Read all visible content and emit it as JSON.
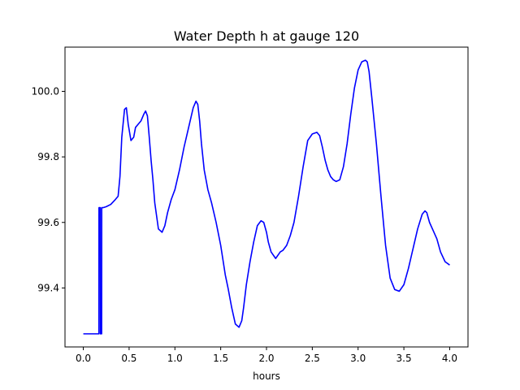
{
  "chart_data": {
    "type": "line",
    "title": "Water Depth h at gauge 120",
    "xlabel": "hours",
    "ylabel": "",
    "xlim": [
      -0.2,
      4.2
    ],
    "ylim": [
      99.22,
      100.135
    ],
    "xticks": [
      0.0,
      0.5,
      1.0,
      1.5,
      2.0,
      2.5,
      3.0,
      3.5,
      4.0
    ],
    "xtick_labels": [
      "0.0",
      "0.5",
      "1.0",
      "1.5",
      "2.0",
      "2.5",
      "3.0",
      "3.5",
      "4.0"
    ],
    "yticks": [
      99.4,
      99.6,
      99.8,
      100.0
    ],
    "ytick_labels": [
      "99.4",
      "99.6",
      "99.8",
      "100.0"
    ],
    "grid": false,
    "series": [
      {
        "color": "#0000ff",
        "x": [
          0.0,
          0.17,
          0.171,
          0.185,
          0.186,
          0.2,
          0.201,
          0.215,
          0.216,
          0.25,
          0.3,
          0.35,
          0.38,
          0.4,
          0.42,
          0.45,
          0.47,
          0.49,
          0.52,
          0.55,
          0.57,
          0.6,
          0.63,
          0.66,
          0.68,
          0.7,
          0.72,
          0.74,
          0.76,
          0.78,
          0.82,
          0.86,
          0.89,
          0.92,
          0.96,
          1.0,
          1.05,
          1.1,
          1.15,
          1.2,
          1.23,
          1.25,
          1.27,
          1.29,
          1.32,
          1.36,
          1.4,
          1.45,
          1.5,
          1.55,
          1.58,
          1.62,
          1.66,
          1.7,
          1.73,
          1.75,
          1.78,
          1.82,
          1.86,
          1.9,
          1.94,
          1.97,
          2.0,
          2.02,
          2.05,
          2.1,
          2.15,
          2.18,
          2.22,
          2.26,
          2.3,
          2.35,
          2.4,
          2.45,
          2.5,
          2.55,
          2.58,
          2.61,
          2.64,
          2.67,
          2.7,
          2.73,
          2.76,
          2.8,
          2.84,
          2.88,
          2.92,
          2.96,
          3.0,
          3.04,
          3.08,
          3.1,
          3.12,
          3.15,
          3.2,
          3.25,
          3.3,
          3.35,
          3.4,
          3.45,
          3.5,
          3.55,
          3.6,
          3.65,
          3.7,
          3.73,
          3.75,
          3.78,
          3.82,
          3.86,
          3.9,
          3.95,
          4.0
        ],
        "y": [
          99.26,
          99.26,
          99.645,
          99.645,
          99.26,
          99.26,
          99.645,
          99.645,
          99.645,
          99.648,
          99.655,
          99.67,
          99.68,
          99.74,
          99.86,
          99.945,
          99.95,
          99.9,
          99.85,
          99.86,
          99.89,
          99.9,
          99.91,
          99.93,
          99.94,
          99.925,
          99.86,
          99.79,
          99.73,
          99.66,
          99.58,
          99.57,
          99.59,
          99.63,
          99.67,
          99.7,
          99.76,
          99.83,
          99.89,
          99.95,
          99.97,
          99.96,
          99.91,
          99.84,
          99.76,
          99.7,
          99.66,
          99.6,
          99.53,
          99.44,
          99.4,
          99.34,
          99.29,
          99.28,
          99.3,
          99.34,
          99.41,
          99.48,
          99.54,
          99.59,
          99.605,
          99.6,
          99.57,
          99.54,
          99.51,
          99.49,
          99.51,
          99.515,
          99.53,
          99.56,
          99.6,
          99.68,
          99.77,
          99.85,
          99.87,
          99.875,
          99.865,
          99.83,
          99.79,
          99.76,
          99.74,
          99.73,
          99.725,
          99.73,
          99.77,
          99.84,
          99.93,
          100.01,
          100.065,
          100.09,
          100.095,
          100.09,
          100.06,
          99.98,
          99.84,
          99.68,
          99.53,
          99.43,
          99.395,
          99.39,
          99.41,
          99.46,
          99.52,
          99.58,
          99.625,
          99.635,
          99.63,
          99.6,
          99.575,
          99.55,
          99.51,
          99.48,
          99.47
        ]
      }
    ]
  }
}
